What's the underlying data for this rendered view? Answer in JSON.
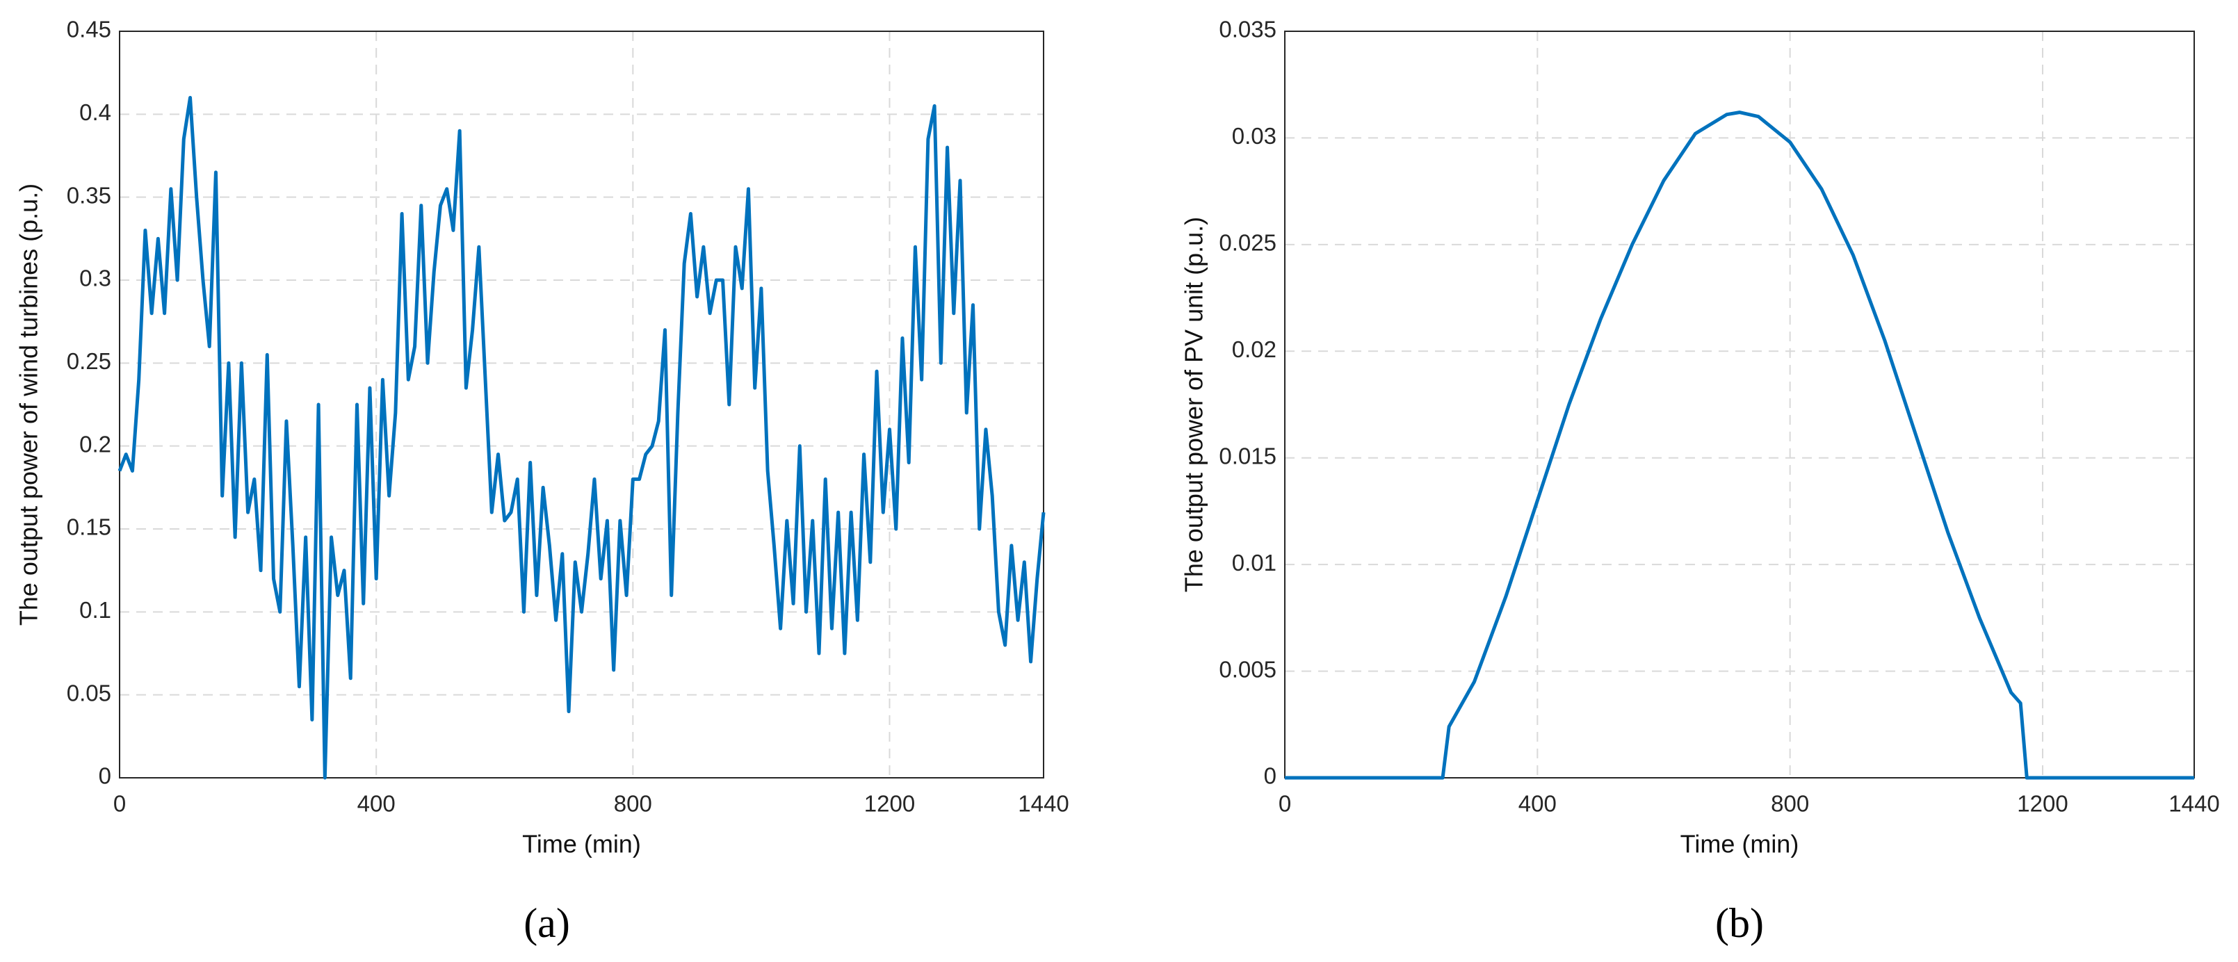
{
  "chart_data": [
    {
      "type": "line",
      "panel_label": "(a)",
      "xlabel": "Time (min)",
      "ylabel": "The output power of wind turbines (p.u.)",
      "xlim": [
        0,
        1440
      ],
      "xticks": [
        0,
        400,
        800,
        1200,
        1440
      ],
      "ylim": [
        0,
        0.45
      ],
      "yticks": [
        0,
        0.05,
        0.1,
        0.15,
        0.2,
        0.25,
        0.3,
        0.35,
        0.4,
        0.45
      ],
      "grid": true,
      "series": [
        {
          "color": "#0072BD",
          "x": [
            0,
            10,
            20,
            30,
            40,
            50,
            60,
            70,
            80,
            90,
            100,
            110,
            120,
            130,
            140,
            150,
            160,
            170,
            180,
            190,
            200,
            210,
            220,
            230,
            240,
            250,
            260,
            270,
            280,
            290,
            300,
            310,
            320,
            330,
            340,
            350,
            360,
            370,
            380,
            390,
            400,
            410,
            420,
            430,
            440,
            450,
            460,
            470,
            480,
            490,
            500,
            510,
            520,
            530,
            540,
            550,
            560,
            570,
            580,
            590,
            600,
            610,
            620,
            630,
            640,
            650,
            660,
            670,
            680,
            690,
            700,
            710,
            720,
            730,
            740,
            750,
            760,
            770,
            780,
            790,
            800,
            810,
            820,
            830,
            840,
            850,
            860,
            870,
            880,
            890,
            900,
            910,
            920,
            930,
            940,
            950,
            960,
            970,
            980,
            990,
            1000,
            1010,
            1020,
            1030,
            1040,
            1050,
            1060,
            1070,
            1080,
            1090,
            1100,
            1110,
            1120,
            1130,
            1140,
            1150,
            1160,
            1170,
            1180,
            1190,
            1200,
            1210,
            1220,
            1230,
            1240,
            1250,
            1260,
            1270,
            1280,
            1290,
            1300,
            1310,
            1320,
            1330,
            1340,
            1350,
            1360,
            1370,
            1380,
            1390,
            1400,
            1410,
            1420,
            1430,
            1440
          ],
          "values": [
            0.185,
            0.195,
            0.185,
            0.24,
            0.33,
            0.28,
            0.325,
            0.28,
            0.355,
            0.3,
            0.385,
            0.41,
            0.35,
            0.3,
            0.26,
            0.365,
            0.17,
            0.25,
            0.145,
            0.25,
            0.16,
            0.18,
            0.125,
            0.255,
            0.12,
            0.1,
            0.215,
            0.14,
            0.055,
            0.145,
            0.035,
            0.225,
            0.0,
            0.145,
            0.11,
            0.125,
            0.06,
            0.225,
            0.105,
            0.235,
            0.12,
            0.24,
            0.17,
            0.22,
            0.34,
            0.24,
            0.26,
            0.345,
            0.25,
            0.305,
            0.345,
            0.355,
            0.33,
            0.39,
            0.235,
            0.27,
            0.32,
            0.24,
            0.16,
            0.195,
            0.155,
            0.16,
            0.18,
            0.1,
            0.19,
            0.11,
            0.175,
            0.14,
            0.095,
            0.135,
            0.04,
            0.13,
            0.1,
            0.135,
            0.18,
            0.12,
            0.155,
            0.065,
            0.155,
            0.11,
            0.18,
            0.18,
            0.195,
            0.2,
            0.215,
            0.27,
            0.11,
            0.22,
            0.31,
            0.34,
            0.29,
            0.32,
            0.28,
            0.3,
            0.3,
            0.225,
            0.32,
            0.295,
            0.355,
            0.235,
            0.295,
            0.185,
            0.14,
            0.09,
            0.155,
            0.105,
            0.2,
            0.1,
            0.155,
            0.075,
            0.18,
            0.09,
            0.16,
            0.075,
            0.16,
            0.095,
            0.195,
            0.13,
            0.245,
            0.16,
            0.21,
            0.15,
            0.265,
            0.19,
            0.32,
            0.24,
            0.385,
            0.405,
            0.25,
            0.38,
            0.28,
            0.36,
            0.22,
            0.285,
            0.15,
            0.21,
            0.17,
            0.1,
            0.08,
            0.14,
            0.095,
            0.13,
            0.07,
            0.12,
            0.16
          ]
        }
      ]
    },
    {
      "type": "line",
      "panel_label": "(b)",
      "xlabel": "Time (min)",
      "ylabel": "The output power of PV unit (p.u.)",
      "xlim": [
        0,
        1440
      ],
      "xticks": [
        0,
        400,
        800,
        1200,
        1440
      ],
      "ylim": [
        0,
        0.035
      ],
      "yticks": [
        0,
        0.005,
        0.01,
        0.015,
        0.02,
        0.025,
        0.03,
        0.035
      ],
      "grid": true,
      "series": [
        {
          "color": "#0072BD",
          "x": [
            0,
            250,
            260,
            300,
            350,
            400,
            450,
            500,
            550,
            600,
            650,
            700,
            720,
            750,
            800,
            850,
            900,
            950,
            1000,
            1050,
            1100,
            1150,
            1165,
            1175,
            1440
          ],
          "values": [
            0,
            0,
            0.0024,
            0.0045,
            0.0085,
            0.013,
            0.0175,
            0.0215,
            0.025,
            0.028,
            0.0302,
            0.0311,
            0.0312,
            0.031,
            0.0298,
            0.0276,
            0.0245,
            0.0205,
            0.016,
            0.0115,
            0.0075,
            0.004,
            0.0035,
            0,
            0
          ]
        }
      ]
    }
  ]
}
